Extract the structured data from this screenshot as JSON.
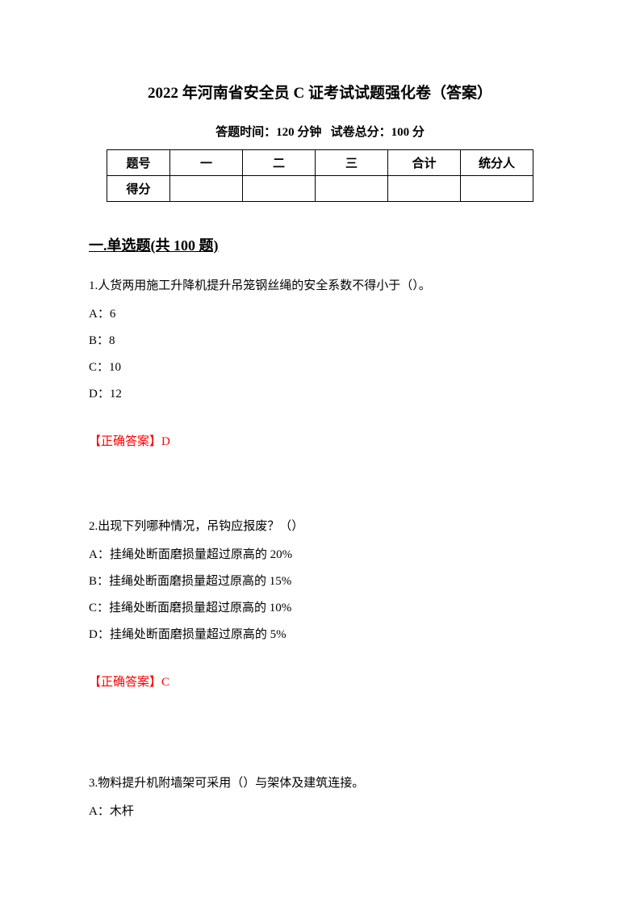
{
  "title": "2022 年河南省安全员 C 证考试试题强化卷（答案）",
  "examInfo": {
    "timeLabel": "答题时间：",
    "timeValue": "120 分钟",
    "scoreLabel": "试卷总分：",
    "scoreValue": "100 分"
  },
  "scoreTable": {
    "headers": [
      "题号",
      "一",
      "二",
      "三",
      "合计",
      "统分人"
    ],
    "scoreRow": "得分"
  },
  "section1": {
    "prefix": "一.",
    "title": "单选题(共 100 题)"
  },
  "q1": {
    "text": "1.人货两用施工升降机提升吊笼钢丝绳的安全系数不得小于（）。",
    "optA": "A：6",
    "optB": "B：8",
    "optC": "C：10",
    "optD": "D：12",
    "answerLabel": "【正确答案】",
    "answerValue": "D"
  },
  "q2": {
    "text": "2.出现下列哪种情况，吊钩应报废？（）",
    "optA": "A：挂绳处断面磨损量超过原高的 20%",
    "optB": "B：挂绳处断面磨损量超过原高的 15%",
    "optC": "C：挂绳处断面磨损量超过原高的 10%",
    "optD": "D：挂绳处断面磨损量超过原高的 5%",
    "answerLabel": "【正确答案】",
    "answerValue": "C"
  },
  "q3": {
    "text": "3.物料提升机附墙架可采用（）与架体及建筑连接。",
    "optA": "A：木杆"
  },
  "styles": {
    "pageWidth": 793,
    "pageHeight": 1122,
    "backgroundColor": "#ffffff",
    "textColor": "#000000",
    "answerColor": "#ff0000",
    "titleFontSize": 19,
    "bodyFontSize": 15,
    "sectionFontSize": 18,
    "fontFamily": "SimSun"
  }
}
